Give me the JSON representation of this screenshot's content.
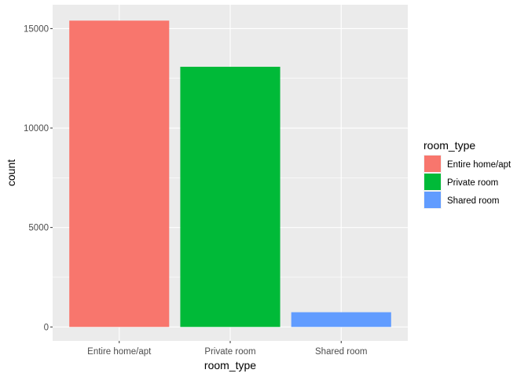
{
  "chart_data": {
    "type": "bar",
    "categories": [
      "Entire home/apt",
      "Private room",
      "Shared room"
    ],
    "values": [
      15400,
      13080,
      740
    ],
    "colors": [
      "#F8766D",
      "#00BA38",
      "#619CFF"
    ],
    "xlabel": "room_type",
    "ylabel": "count",
    "ylim": [
      -700,
      16200
    ],
    "yticks": [
      0,
      5000,
      10000,
      15000
    ],
    "ytick_labels": [
      "0",
      "5000",
      "10000",
      "15000"
    ],
    "grid": true,
    "background": "#EBEBEB",
    "legend": {
      "title": "room_type",
      "placement": "right",
      "entries": [
        "Entire home/apt",
        "Private room",
        "Shared room"
      ]
    }
  }
}
